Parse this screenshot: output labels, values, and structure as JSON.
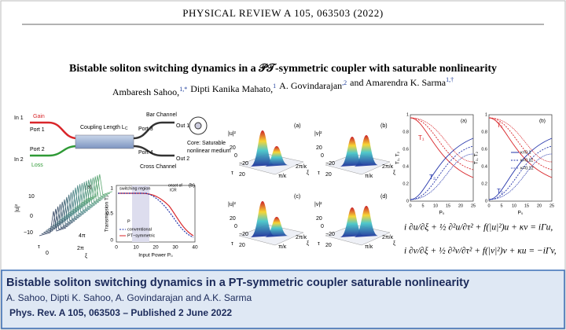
{
  "header": {
    "journal": "PHYSICAL REVIEW A 105, 063503 (2022)"
  },
  "title": "Bistable soliton switching dynamics in a 𝒫𝒯-symmetric coupler with saturable nonlinearity",
  "authors": [
    {
      "name": "Ambaresh Sahoo,",
      "sup": "1,*"
    },
    {
      "name": "Dipti Kanika Mahato,",
      "sup": "1"
    },
    {
      "name": "A. Govindarajan",
      "sup": ",2"
    },
    {
      "name": "and Amarendra K. Sarma",
      "sup": "1,†"
    }
  ],
  "schematic": {
    "in1": "In 1",
    "gain": "Gain",
    "port1": "Port 1",
    "coupling": "Coupling Length L",
    "coupling_sub": "C",
    "bar": "Bar Channel",
    "port3": "Port 3",
    "out1": "Out 1",
    "in2": "In 2",
    "port2": "Port 2",
    "loss": "Loss",
    "port4": "Port 4",
    "cross": "Cross Channel",
    "out2": "Out 2",
    "core1": "Core: Saturable",
    "core2": "nonlinear medium"
  },
  "waterfall": {
    "ylabel": "|u|²",
    "yticks": [
      "10",
      "0",
      "−10"
    ],
    "tau": "τ",
    "zero": "0",
    "x1": "4π",
    "x2": "2π",
    "xi": "ξ",
    "tag": "(a)"
  },
  "transmission": {
    "tag": "(b)",
    "ylabel": "Transmission T₁",
    "yticks": [
      "1",
      "0.5",
      "0"
    ],
    "xticks": [
      "0",
      "10",
      "20",
      "30",
      "40"
    ],
    "xlabel": "Input Power P₀",
    "switching": "switching region",
    "onset1": "onset of",
    "onset2": "ICR",
    "p_sort": "P",
    "legend": [
      "conventional",
      "PT−symmetric"
    ]
  },
  "surfaces": {
    "panels": [
      {
        "ylabel": "|u|²",
        "tag": "(a)"
      },
      {
        "ylabel": "|v|²",
        "tag": "(b)"
      },
      {
        "ylabel": "|u|²",
        "tag": "(c)"
      },
      {
        "ylabel": "|v|²",
        "tag": "(d)"
      }
    ],
    "zticks": [
      "20",
      "0",
      "−20"
    ],
    "tau": "τ",
    "x1": "π/κ",
    "x2": "2π/κ",
    "xi": "ξ"
  },
  "transfer": {
    "panels": [
      {
        "tag": "(a)"
      },
      {
        "tag": "(b)"
      }
    ],
    "ylabel": "T₁, T₂",
    "yticks": [
      "1",
      "0.8",
      "0.6",
      "0.4",
      "0.2",
      "0"
    ],
    "xticks": [
      "0",
      "5",
      "10",
      "15",
      "20",
      "25"
    ],
    "xlabel": "P₀",
    "t1": "T₁",
    "t2": "T₂",
    "legend": [
      "κ=0.1",
      "κ=0.11",
      "κ=0.12"
    ]
  },
  "equations": [
    "i ∂u/∂ξ + ½ ∂²u/∂τ² + f(|u|²)u + κv = iΓu,",
    "i ∂v/∂ξ + ½ ∂²v/∂τ² + f(|v|²)v + κu = −iΓv,"
  ],
  "caption": {
    "title": "Bistable soliton switching dynamics in a PT-symmetric coupler saturable nonlinearity",
    "authors": "A. Sahoo, Dipti K. Sahoo, A. Govindarajan and A.K. Sarma",
    "citation": "Phys. Rev. A 105, 063503  – Published 2 June 2022"
  }
}
